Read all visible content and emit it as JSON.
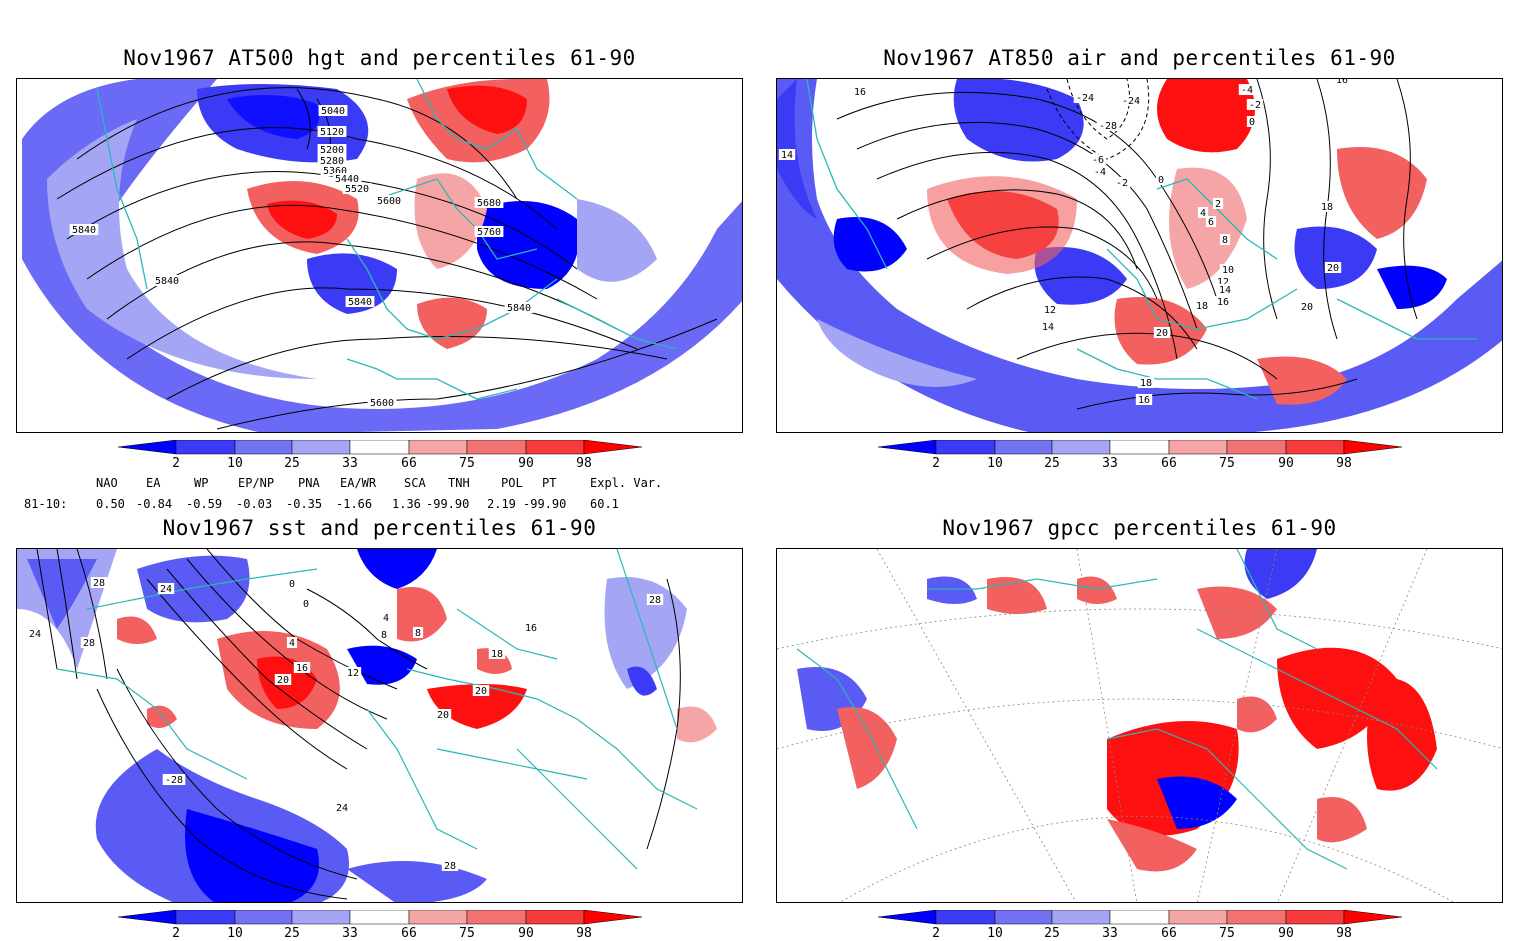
{
  "panels": [
    {
      "title": "Nov1967 AT500 hgt and percentiles 61-90",
      "contour_labels": [
        "5040",
        "5120",
        "5200",
        "5280",
        "5360",
        "5440",
        "5520",
        "5600",
        "5680",
        "5760",
        "5840",
        "5840",
        "5840",
        "5840",
        "5600"
      ]
    },
    {
      "title": "Nov1967 AT850 air and percentiles 61-90",
      "contour_labels": [
        "16",
        "14",
        "-24",
        "-24",
        "-28",
        "-4",
        "-2",
        "0",
        "-6",
        "-4",
        "-2",
        "0",
        "2",
        "4",
        "6",
        "8",
        "10",
        "12",
        "14",
        "16",
        "18",
        "18",
        "20",
        "20",
        "20",
        "12",
        "14",
        "18",
        "16",
        "16"
      ]
    },
    {
      "title": "Nov1967 sst and percentiles 61-90",
      "contour_labels": [
        "28",
        "24",
        "28",
        "24",
        "0",
        "0",
        "4",
        "4",
        "8",
        "8",
        "12",
        "16",
        "20",
        "20",
        "20",
        "-28",
        "24",
        "28",
        "28",
        "16",
        "18"
      ]
    },
    {
      "title": "Nov1967 gpcc percentiles 61-90",
      "contour_labels": []
    }
  ],
  "colorbar": {
    "ticks": [
      "2",
      "10",
      "25",
      "33",
      "66",
      "75",
      "90",
      "98"
    ],
    "colors": [
      "#0000ff",
      "#3b3bf5",
      "#7272f2",
      "#a5a5f5",
      "#ffffff",
      "#f5a5a5",
      "#f27272",
      "#f53b3b",
      "#ff0000"
    ]
  },
  "teleconnections": {
    "header": [
      "NAO",
      "EA",
      "WP",
      "EP/NP",
      "PNA",
      "EA/WR",
      "SCA",
      "TNH",
      "POL",
      "PT",
      "Expl. Var."
    ],
    "row_label": "81-10:",
    "row_values": [
      "0.50",
      "-0.84",
      "-0.59",
      "-0.03",
      "-0.35",
      "-1.66",
      "1.36",
      "-99.90",
      "2.19",
      "-99.90",
      "60.1"
    ]
  },
  "colors": {
    "coast": "#2ab8b8",
    "blue_strong": "#0000ff",
    "blue_mid": "#5a5af5",
    "blue_light": "#a5a5f5",
    "red_strong": "#ff1010",
    "red_mid": "#f26060",
    "red_light": "#f5a5a5",
    "contour": "#000000"
  }
}
